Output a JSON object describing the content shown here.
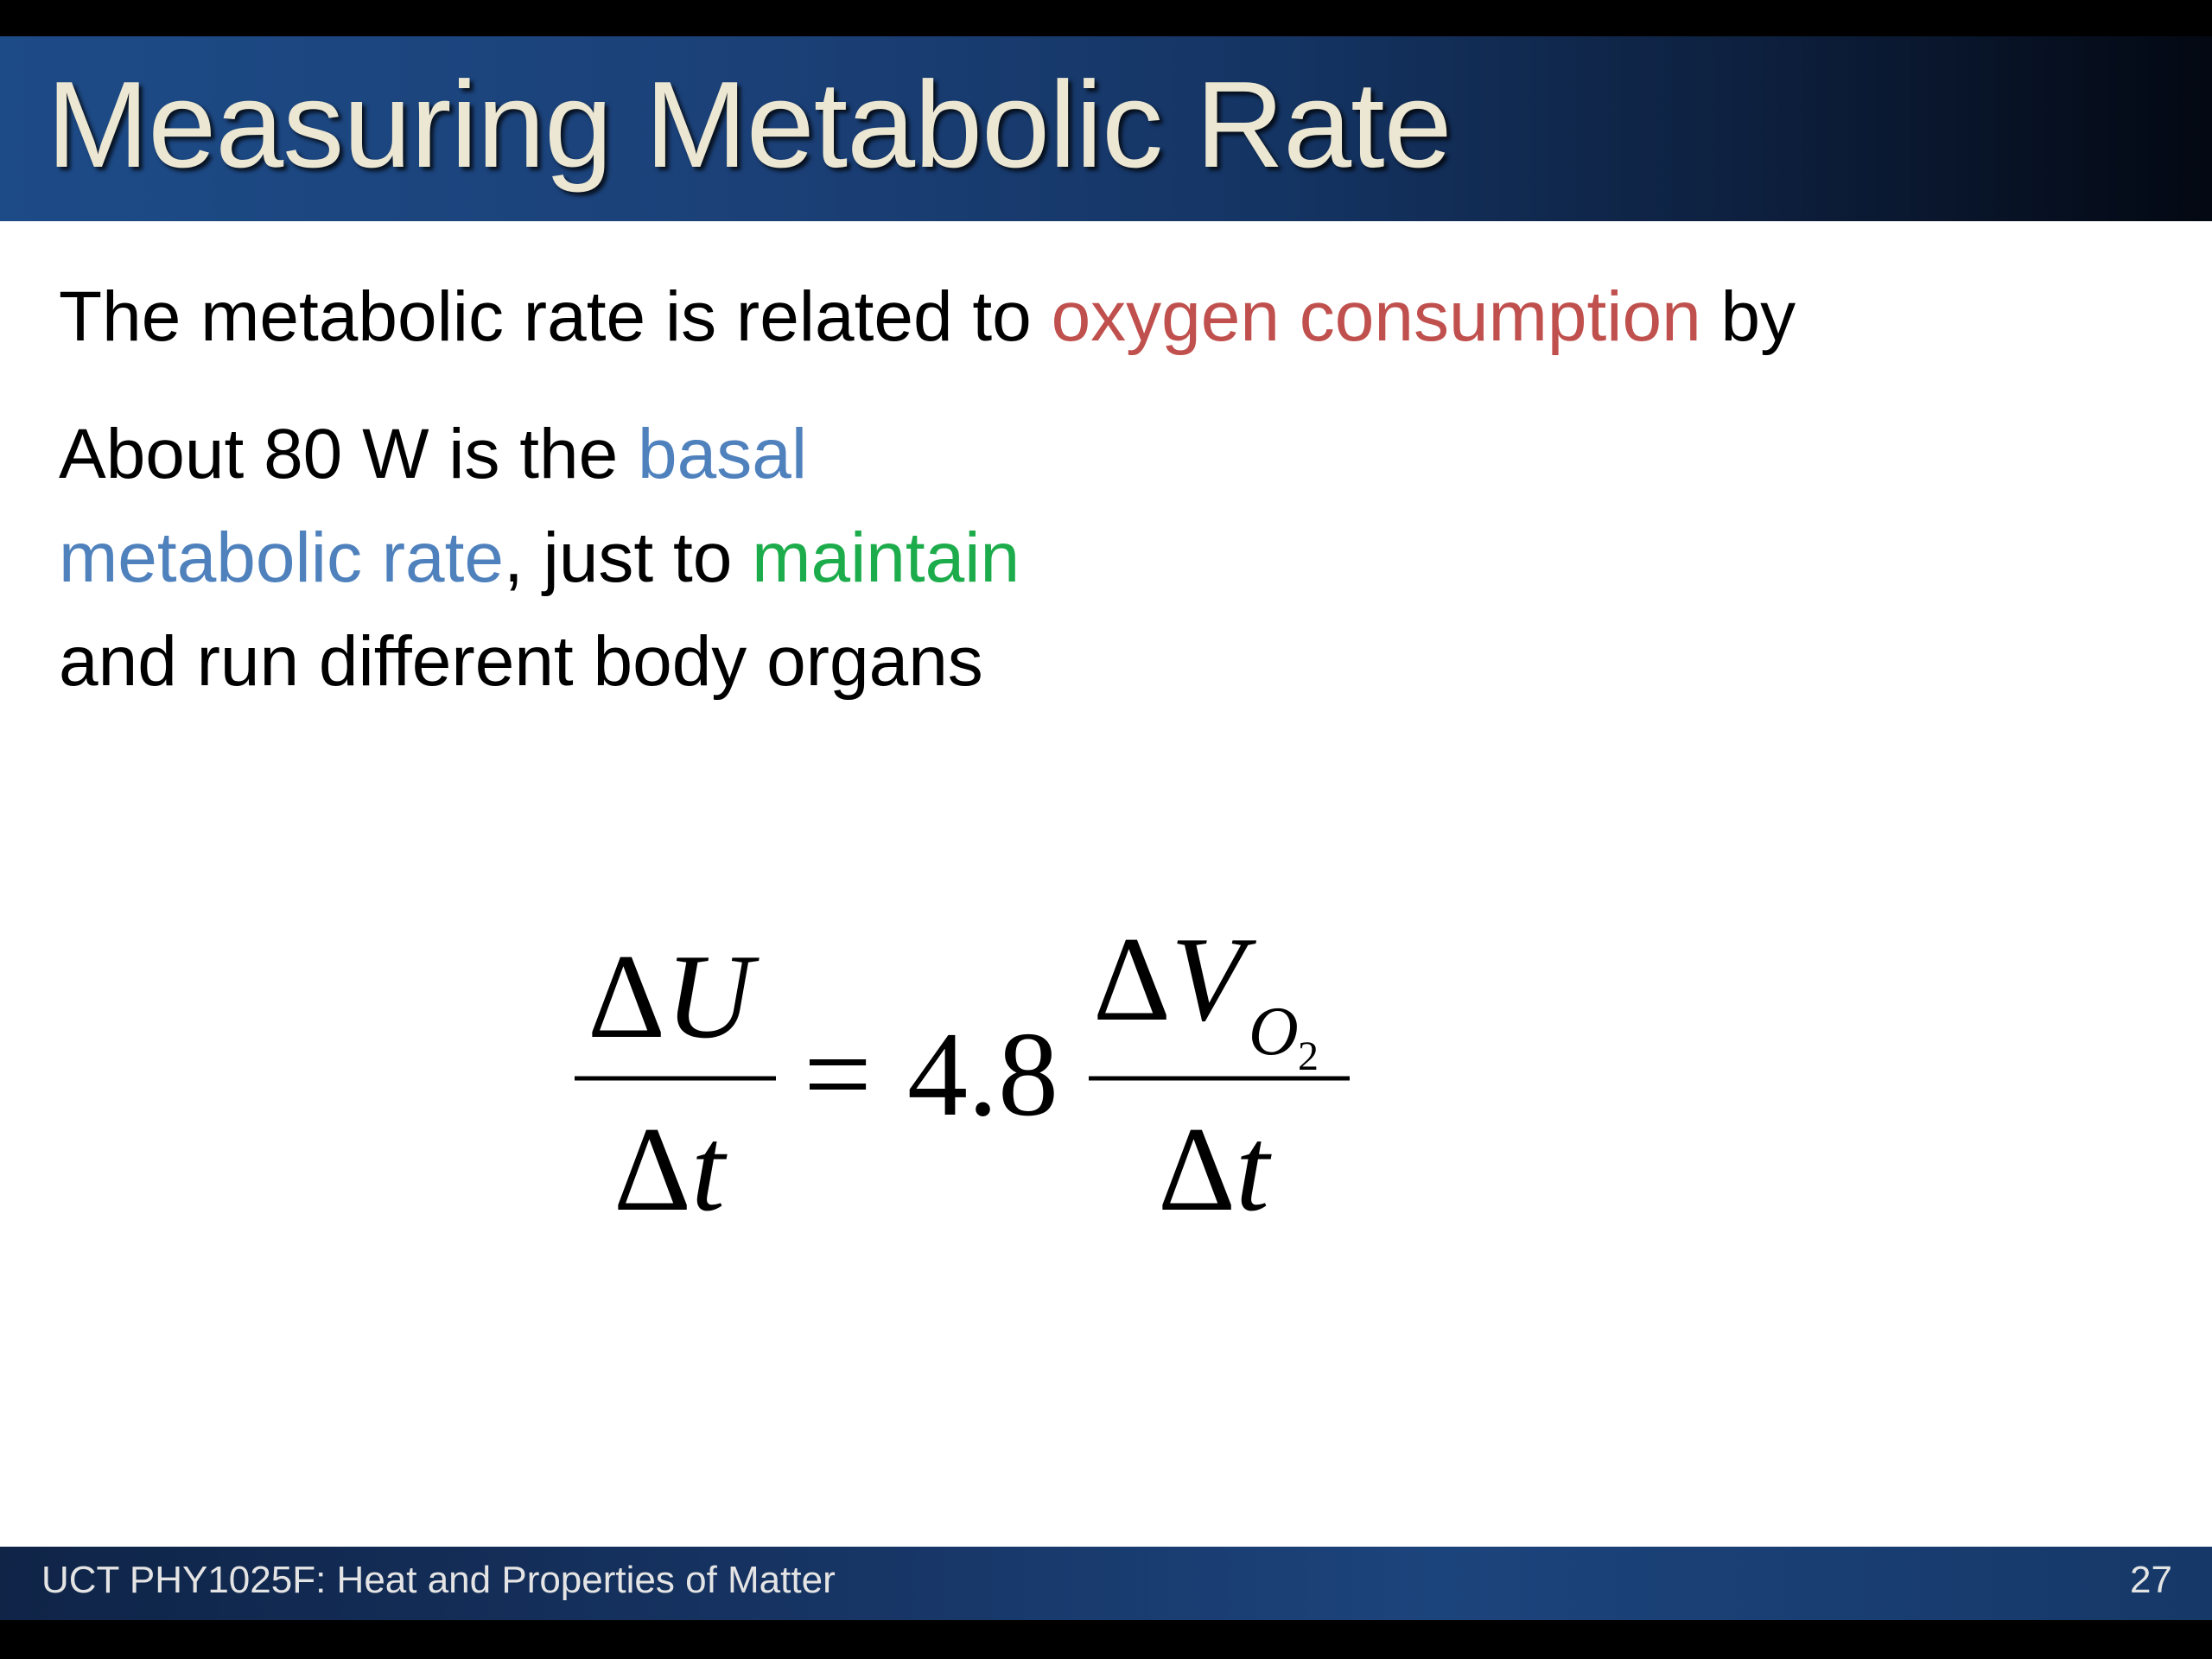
{
  "slide": {
    "title": "Measuring Metabolic Rate",
    "line1": {
      "before": "The metabolic rate is related to ",
      "highlight": "oxygen consumption",
      "after": " by"
    },
    "para2": {
      "t1": "About 80 W is the ",
      "basal": "basal",
      "metabolic_rate": "metabolic rate",
      "t2": ", just to ",
      "maintain": "maintain",
      "t3": "and run different body organs"
    },
    "equation": {
      "delta": "Δ",
      "lhs_num_var": "U",
      "lhs_den_var": "t",
      "equals": "=",
      "coefficient": "4.8",
      "rhs_num_var": "V",
      "rhs_sub_var": "O",
      "rhs_sub_index": "2",
      "rhs_den_var": "t"
    },
    "highlight_colors": {
      "red": "#c0504d",
      "blue": "#4f81bd",
      "green": "#1dac4b"
    }
  },
  "footer": {
    "course": "UCT PHY1025F: Heat and Properties of Matter",
    "page_number": "27"
  }
}
